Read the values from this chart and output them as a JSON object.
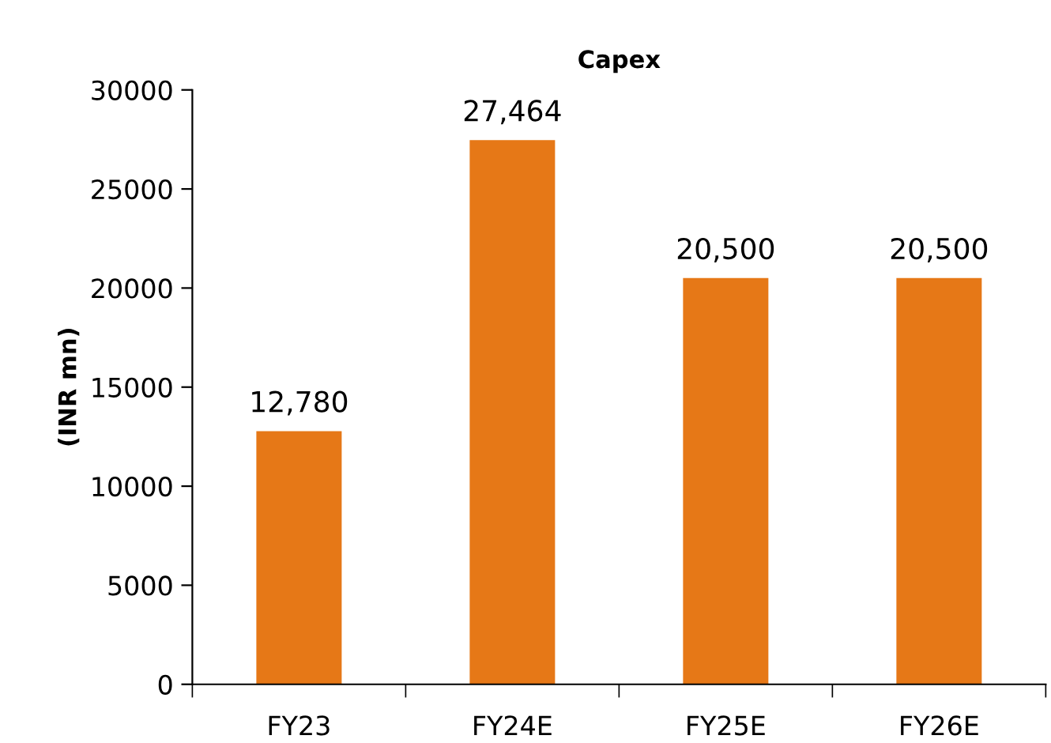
{
  "chart_data": {
    "type": "bar",
    "title": "Capex",
    "ylabel": "(INR mn)",
    "categories": [
      "FY23",
      "FY24E",
      "FY25E",
      "FY26E"
    ],
    "values": [
      12780,
      27464,
      20500,
      20500
    ],
    "value_labels": [
      "12,780",
      "27,464",
      "20,500",
      "20,500"
    ],
    "color": "#e67817",
    "ylim": [
      0,
      30000
    ],
    "yticks": [
      0,
      5000,
      10000,
      15000,
      20000,
      25000,
      30000
    ],
    "grid": false,
    "legend": false
  }
}
